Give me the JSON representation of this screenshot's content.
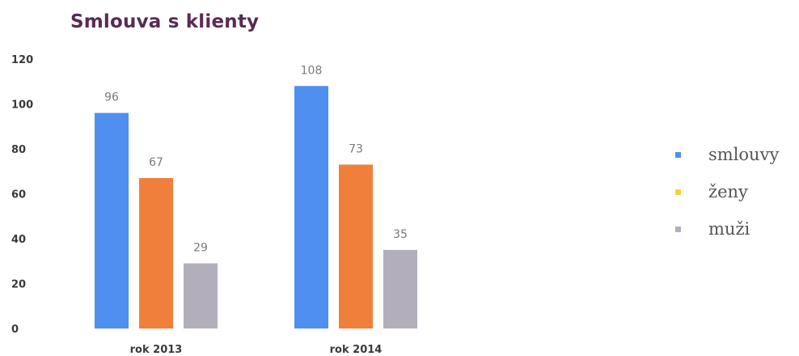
{
  "chart_data": {
    "type": "bar",
    "title": "Smlouva s klienty",
    "categories": [
      "rok 2013",
      "rok 2014"
    ],
    "series": [
      {
        "name": "smlouvy",
        "values": [
          96,
          108
        ],
        "color": "#4f8ff0"
      },
      {
        "name": "ženy",
        "values": [
          67,
          73
        ],
        "color": "#f07f3c",
        "legend_color": "#f5d040"
      },
      {
        "name": "muži",
        "values": [
          29,
          35
        ],
        "color": "#b3aebc"
      }
    ],
    "ylim": [
      0,
      120
    ],
    "yticks": [
      0,
      20,
      40,
      60,
      80,
      100,
      120
    ],
    "xlabel": "",
    "ylabel": "",
    "grid": false,
    "legend_position": "right"
  }
}
